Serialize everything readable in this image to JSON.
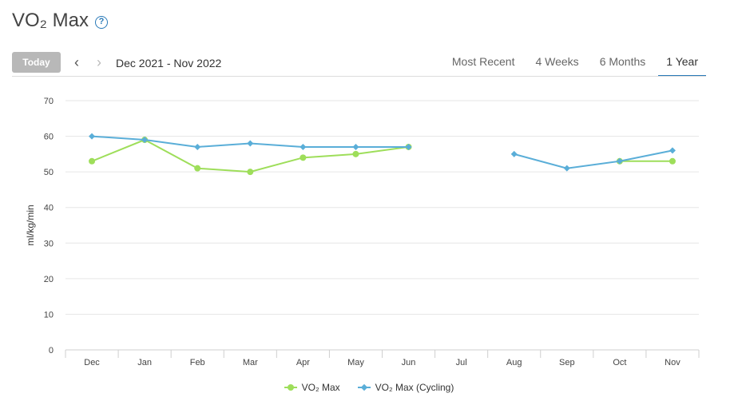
{
  "header": {
    "title": "VO₂ Max",
    "help_icon": "question-circle-icon"
  },
  "toolbar": {
    "today_label": "Today",
    "prev_icon": "chevron-left-icon",
    "next_icon": "chevron-right-icon",
    "date_range": "Dec 2021 - Nov 2022",
    "tabs": [
      {
        "label": "Most Recent",
        "active": false
      },
      {
        "label": "4 Weeks",
        "active": false
      },
      {
        "label": "6 Months",
        "active": false
      },
      {
        "label": "1 Year",
        "active": true
      }
    ]
  },
  "colors": {
    "vo2": "#9ede5a",
    "cycling": "#5aaed8",
    "accent": "#2a7ab8"
  },
  "chart_data": {
    "type": "line",
    "title": "",
    "xlabel": "",
    "ylabel": "ml/kg/min",
    "ylim": [
      0,
      70
    ],
    "yticks": [
      0,
      10,
      20,
      30,
      40,
      50,
      60,
      70
    ],
    "grid": true,
    "legend_position": "bottom",
    "categories": [
      "Dec",
      "Jan",
      "Feb",
      "Mar",
      "Apr",
      "May",
      "Jun",
      "Jul",
      "Aug",
      "Sep",
      "Oct",
      "Nov"
    ],
    "series": [
      {
        "name": "VO₂ Max",
        "marker": "circle",
        "values": [
          53,
          59,
          51,
          50,
          54,
          55,
          57,
          null,
          null,
          null,
          53,
          53
        ]
      },
      {
        "name": "VO₂ Max (Cycling)",
        "marker": "diamond",
        "values": [
          60,
          59,
          57,
          58,
          57,
          57,
          57,
          null,
          55,
          51,
          53,
          56
        ]
      }
    ]
  }
}
